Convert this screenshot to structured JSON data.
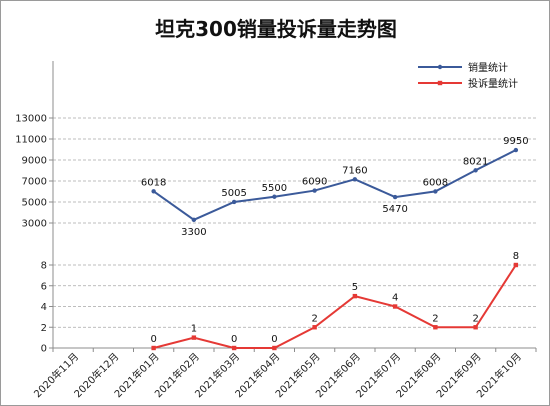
{
  "chart_data": {
    "type": "line",
    "title": "坦克300销量投诉量走势图",
    "categories": [
      "2020年11月",
      "2020年12月",
      "2021年01月",
      "2021年02月",
      "2021年03月",
      "2021年04月",
      "2021年05月",
      "2021年06月",
      "2021年07月",
      "2021年08月",
      "2021年09月",
      "2021年10月"
    ],
    "series": [
      {
        "name": "销量统计",
        "color": "#3b5a9a",
        "axis": "upper",
        "values": [
          null,
          null,
          6018,
          3300,
          5005,
          5500,
          6090,
          7160,
          5470,
          6008,
          8021,
          9950
        ],
        "labels": [
          "",
          "",
          "6018",
          "3300",
          "5005",
          "5500",
          "6090",
          "7160",
          "5470",
          "6008",
          "8021",
          "9950"
        ]
      },
      {
        "name": "投诉量统计",
        "color": "#e53935",
        "axis": "lower",
        "values": [
          null,
          null,
          0,
          1,
          0,
          0,
          2,
          5,
          4,
          2,
          2,
          8
        ],
        "labels": [
          "",
          "",
          "0",
          "1",
          "0",
          "0",
          "2",
          "5",
          "4",
          "2",
          "2",
          "8"
        ]
      }
    ],
    "upper_axis": {
      "ticks": [
        "3000",
        "5000",
        "7000",
        "9000",
        "11000",
        "13000"
      ],
      "ylim": [
        3000,
        13000
      ]
    },
    "lower_axis": {
      "ticks": [
        "0",
        "2",
        "4",
        "6",
        "8"
      ],
      "ylim": [
        0,
        8
      ]
    },
    "grid": true,
    "legend_position": "top-right"
  }
}
